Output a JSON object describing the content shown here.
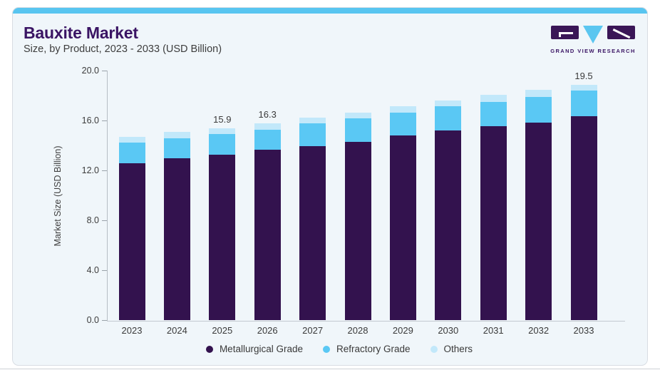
{
  "page": {
    "title": "Bauxite Market",
    "subtitle": "Size, by Product, 2023 - 2033 (USD Billion)"
  },
  "logo": {
    "name": "GRAND VIEW RESEARCH"
  },
  "chart_data": {
    "type": "bar",
    "stacked": true,
    "title": "Bauxite Market Size, by Product, 2023 - 2033 (USD Billion)",
    "xlabel": "",
    "ylabel": "Market Size (USD Billion)",
    "categories": [
      "2023",
      "2024",
      "2025",
      "2026",
      "2027",
      "2028",
      "2029",
      "2030",
      "2031",
      "2032",
      "2033"
    ],
    "series": [
      {
        "name": "Metallurgical Grade",
        "color": "#33124e",
        "values": [
          13.0,
          13.4,
          13.7,
          14.1,
          14.4,
          14.8,
          15.3,
          15.7,
          16.1,
          16.4,
          16.9
        ]
      },
      {
        "name": "Refractory Grade",
        "color": "#5ac8f4",
        "values": [
          1.7,
          1.7,
          1.7,
          1.7,
          1.9,
          1.9,
          1.9,
          2.0,
          2.0,
          2.1,
          2.1
        ]
      },
      {
        "name": "Others",
        "color": "#c2e8fa",
        "values": [
          0.5,
          0.5,
          0.5,
          0.5,
          0.5,
          0.5,
          0.5,
          0.5,
          0.6,
          0.6,
          0.5
        ]
      }
    ],
    "data_labels": [
      {
        "category": "2025",
        "text": "15.9"
      },
      {
        "category": "2026",
        "text": "16.3"
      },
      {
        "category": "2033",
        "text": "19.5"
      }
    ],
    "yticks": [
      {
        "value": 0,
        "label": "0.0"
      },
      {
        "value": 4,
        "label": "4.0"
      },
      {
        "value": 8,
        "label": "8.0"
      },
      {
        "value": 12,
        "label": "12.0"
      },
      {
        "value": 16,
        "label": "16.0"
      },
      {
        "value": 20,
        "label": "20.0"
      }
    ],
    "ylim": [
      0,
      20
    ],
    "grid": false,
    "legend_position": "bottom"
  },
  "colors": {
    "accent_bar": "#58c5f0",
    "card_background": "#f0f6fa",
    "card_border": "#d8dde3",
    "title_purple": "#3a1464",
    "axis_text": "#3c3c3c",
    "metallurgical_grade": "#33124e",
    "refractory_grade": "#5ac8f4",
    "others": "#c2e8fa"
  }
}
